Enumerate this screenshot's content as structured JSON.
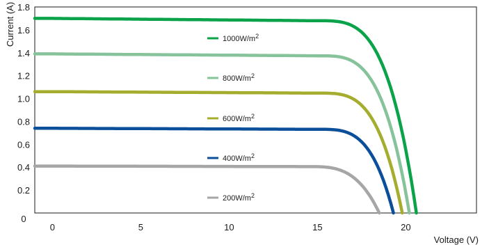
{
  "chart_data": {
    "type": "line",
    "title": "",
    "xlabel": "Voltage (V)",
    "ylabel": "Current (A)",
    "xlim": [
      -1,
      24
    ],
    "ylim": [
      0,
      1.8
    ],
    "x_ticks": [
      0,
      5,
      10,
      15,
      20
    ],
    "y_ticks": [
      0,
      0.2,
      0.4,
      0.6,
      0.8,
      1.0,
      1.2,
      1.4,
      1.6,
      1.8
    ],
    "x_tick_labels": [
      "0",
      "5",
      "10",
      "15",
      "20"
    ],
    "y_tick_labels": [
      "0",
      "0.2",
      "0.4",
      "0.6",
      "0.8",
      "1.0",
      "1.2",
      "1.4",
      "1.6",
      "1.8"
    ],
    "grid": false,
    "legend_position": "inside-center",
    "series": [
      {
        "name": "1000W/m",
        "name_sup": "2",
        "color": "#0aa34a",
        "isc": 1.7,
        "knee_v": 15.0,
        "voc": 20.6,
        "sharpness": 3.5
      },
      {
        "name": "800W/m",
        "name_sup": "2",
        "color": "#86c39a",
        "isc": 1.39,
        "knee_v": 15.0,
        "voc": 20.2,
        "sharpness": 3.5
      },
      {
        "name": "600W/m",
        "name_sup": "2",
        "color": "#a5ad2f",
        "isc": 1.06,
        "knee_v": 15.0,
        "voc": 19.8,
        "sharpness": 3.5
      },
      {
        "name": "400W/m",
        "name_sup": "2",
        "color": "#0b4f9a",
        "isc": 0.74,
        "knee_v": 15.0,
        "voc": 19.3,
        "sharpness": 3.5
      },
      {
        "name": "200W/m",
        "name_sup": "2",
        "color": "#a6a6a6",
        "isc": 0.41,
        "knee_v": 14.5,
        "voc": 18.5,
        "sharpness": 3.2
      }
    ]
  }
}
